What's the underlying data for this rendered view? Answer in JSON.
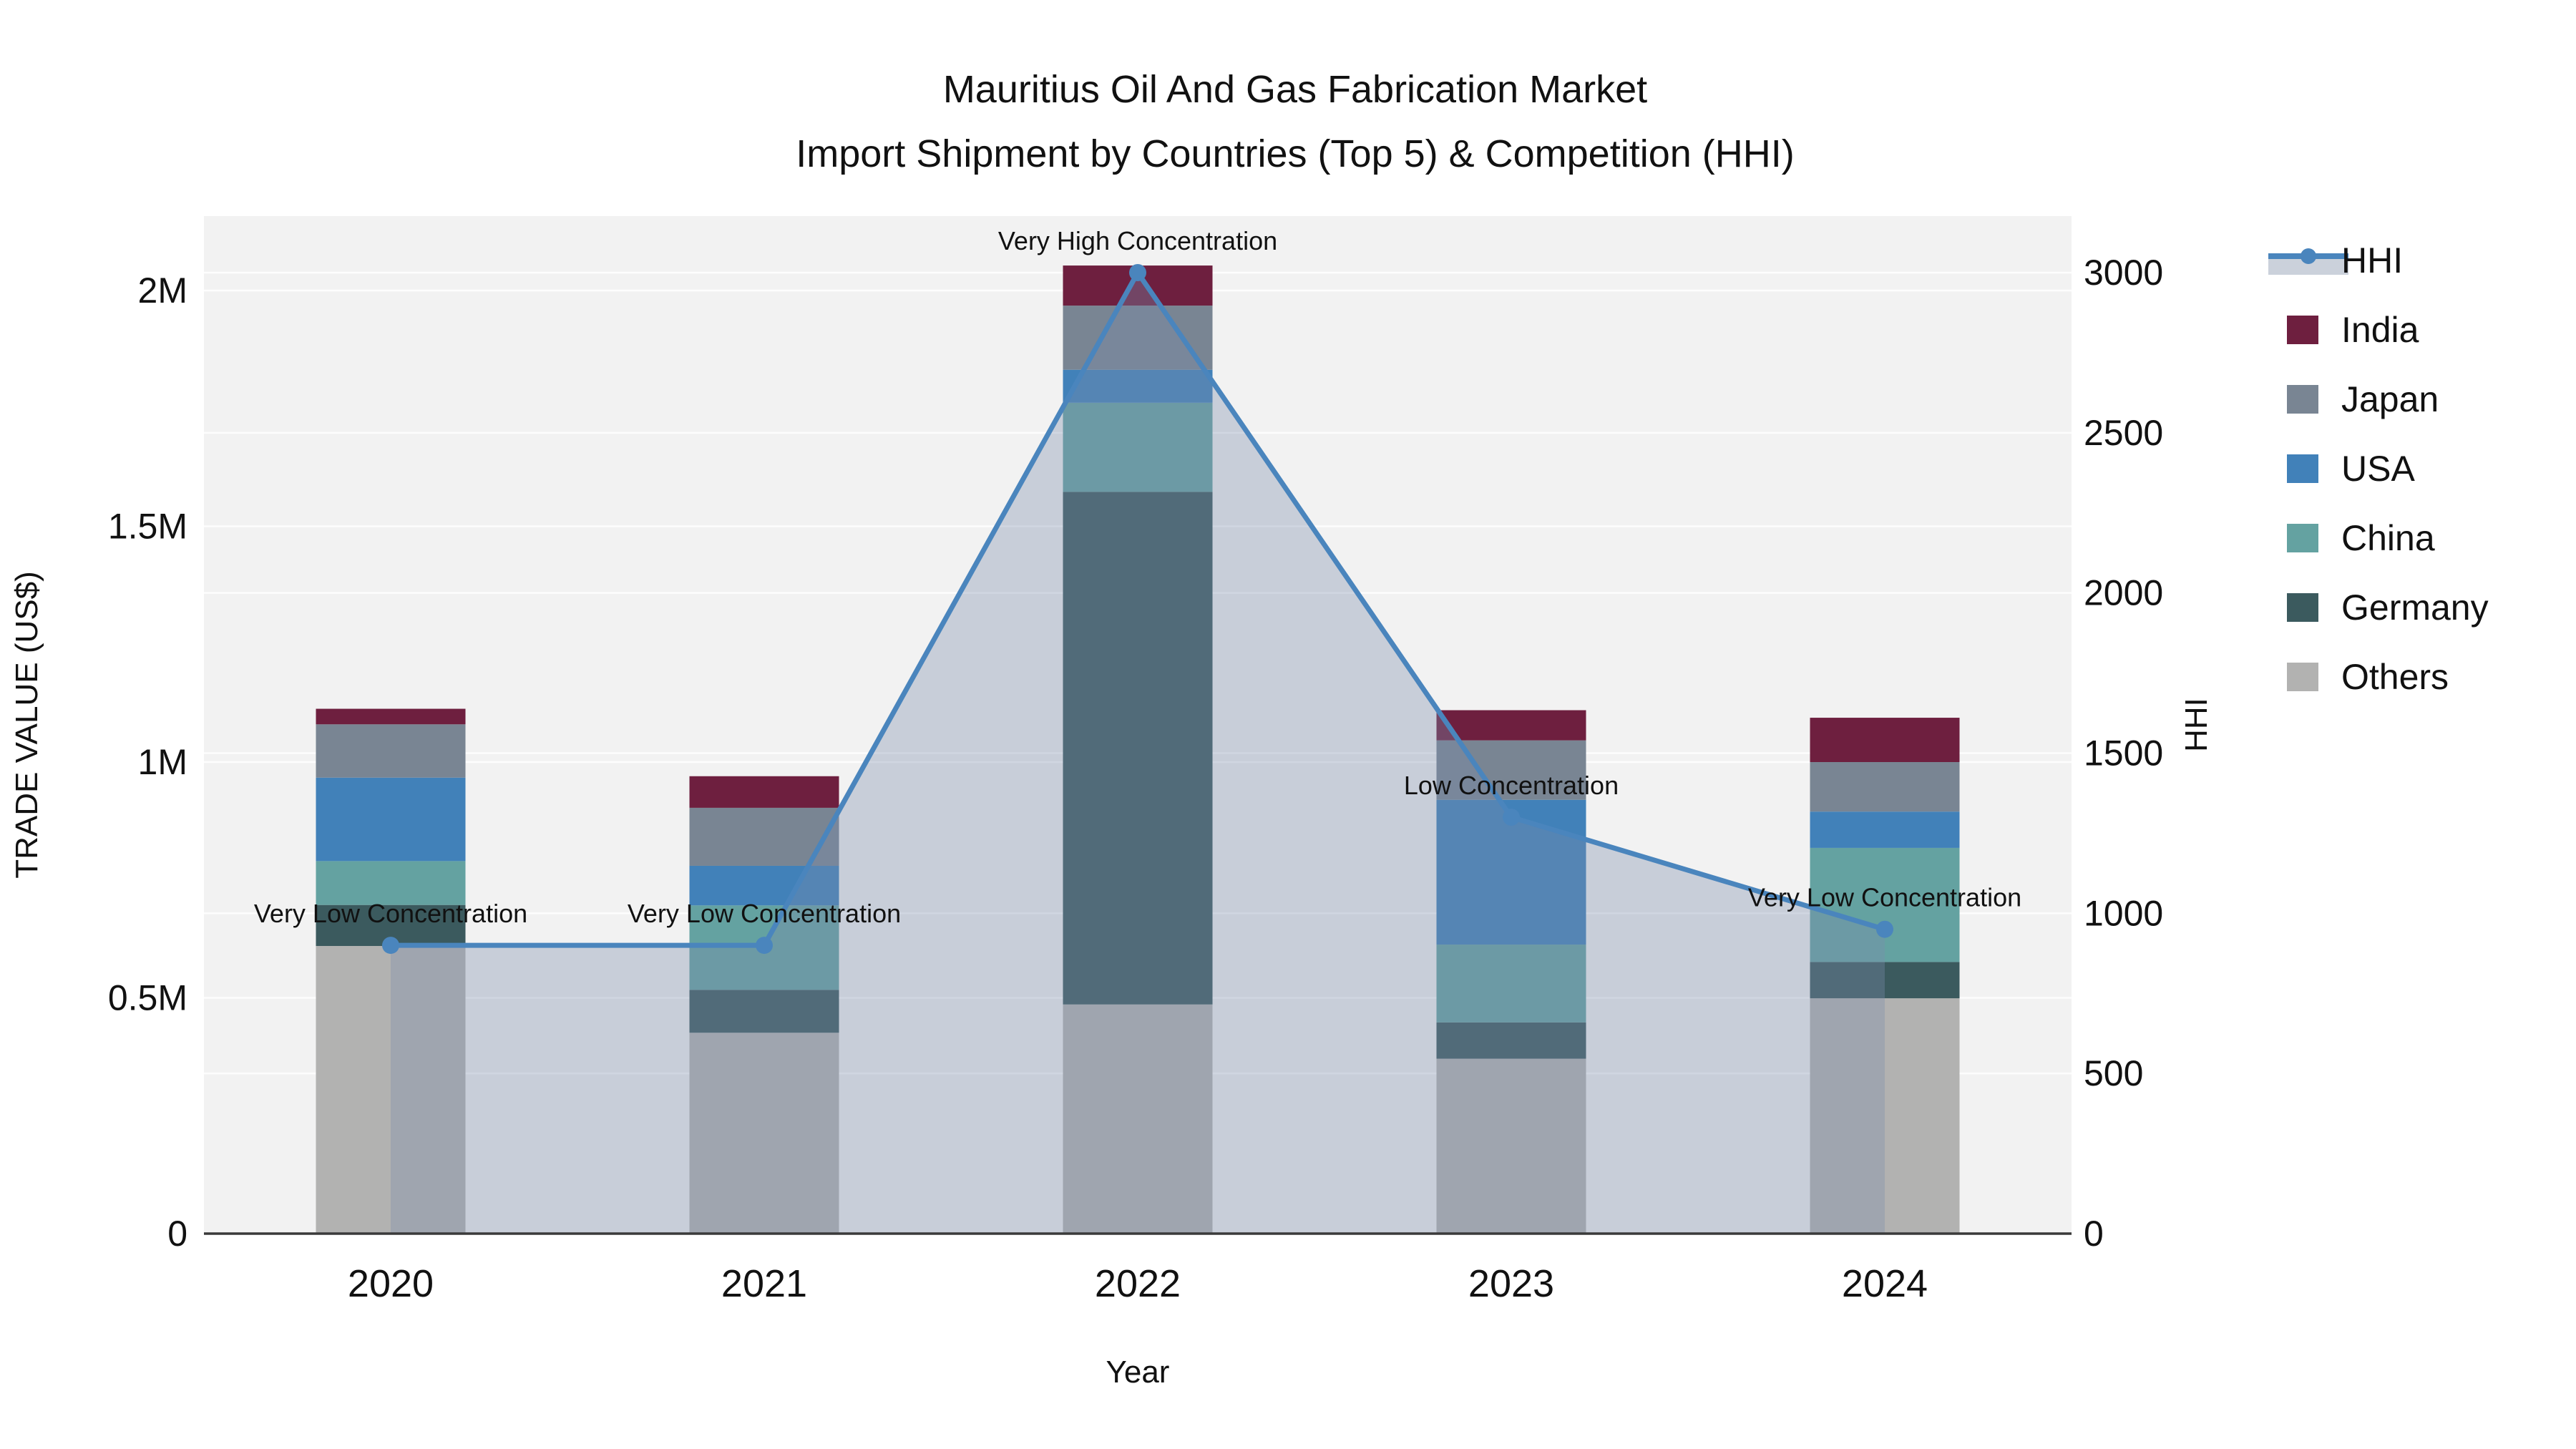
{
  "figure": {
    "title_line1": "Mauritius Oil And Gas Fabrication Market",
    "title_line2": "Import Shipment by Countries (Top 5) & Competition (HHI)"
  },
  "chart_data": {
    "type": "combo: stacked-bar + line (secondary axis)",
    "categories": [
      "2020",
      "2021",
      "2022",
      "2023",
      "2024"
    ],
    "x_title": "Year",
    "bar_stack_order_bottom_to_top": [
      "Others",
      "Germany",
      "China",
      "USA",
      "Japan",
      "India"
    ],
    "series": [
      {
        "name": "Others",
        "color": "#B2B2B1",
        "values": [
          610000,
          426000,
          486000,
          371000,
          499000
        ]
      },
      {
        "name": "Germany",
        "color": "#3B5A5E",
        "values": [
          87000,
          91000,
          1087000,
          77000,
          77000
        ]
      },
      {
        "name": "China",
        "color": "#64A2A1",
        "values": [
          93000,
          179000,
          189000,
          165000,
          242000
        ]
      },
      {
        "name": "USA",
        "color": "#4181B9",
        "values": [
          177000,
          84000,
          70000,
          307000,
          77000
        ]
      },
      {
        "name": "Japan",
        "color": "#798593",
        "values": [
          113000,
          123000,
          136000,
          126000,
          105000
        ]
      },
      {
        "name": "India",
        "color": "#6E1F3F",
        "values": [
          33000,
          67000,
          85000,
          64000,
          94000
        ]
      }
    ],
    "hhi": {
      "name": "HHI",
      "color": "#4A85BD",
      "area_fill": "rgba(124,139,172,0.35)",
      "values": [
        900,
        900,
        3000,
        1300,
        950
      ]
    },
    "annotations": [
      "Very Low Concentration",
      "Very Low Concentration",
      "Very High Concentration",
      "Low Concentration",
      "Very Low Concentration"
    ],
    "left_axis": {
      "title": "TRADE VALUE (US$)",
      "tick_labels": [
        "0",
        "0.5M",
        "1M",
        "1.5M",
        "2M"
      ],
      "tick_values": [
        0,
        500000,
        1000000,
        1500000,
        2000000
      ],
      "range": [
        0,
        2000000
      ]
    },
    "right_axis": {
      "title": "HHI",
      "tick_labels": [
        "0",
        "500",
        "1000",
        "1500",
        "2000",
        "2500",
        "3000"
      ],
      "tick_values": [
        0,
        500,
        1000,
        1500,
        2000,
        2500,
        3000
      ],
      "range": [
        0,
        3000
      ]
    },
    "legend": [
      {
        "label": "HHI",
        "type": "line",
        "color": "#4A85BD",
        "band": "#CBD1DB"
      },
      {
        "label": "India",
        "type": "swatch",
        "color": "#6E1F3F"
      },
      {
        "label": "Japan",
        "type": "swatch",
        "color": "#798593"
      },
      {
        "label": "USA",
        "type": "swatch",
        "color": "#4181B9"
      },
      {
        "label": "China",
        "type": "swatch",
        "color": "#64A2A1"
      },
      {
        "label": "Germany",
        "type": "swatch",
        "color": "#3B5A5E"
      },
      {
        "label": "Others",
        "type": "swatch",
        "color": "#B2B2B1"
      }
    ],
    "colors": {
      "plot_bg": "#F2F2F2",
      "grid": "#FFFFFF",
      "axis_line": "#3A3A3A"
    },
    "layout_hints": {
      "grid": "on (white gridlines for both axes)",
      "legend_position": "right",
      "bars_rendered_under_translucent_area": true
    }
  }
}
